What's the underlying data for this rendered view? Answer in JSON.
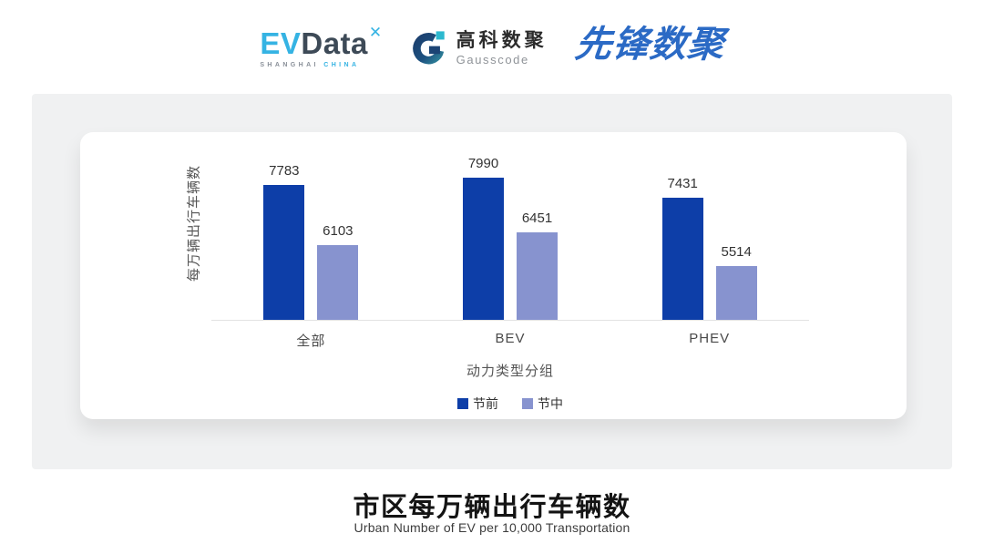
{
  "header": {
    "evdata_logo": {
      "ev": "EV",
      "data": "Data",
      "mark": "✕",
      "sub_left": "SHANGHAI",
      "sub_right": "CHINA"
    },
    "gausscode_logo": {
      "cn": "高科数聚",
      "en": "Gausscode"
    },
    "pioneer_logo": {
      "text": "先锋数聚"
    }
  },
  "chart_data": {
    "type": "bar",
    "categories": [
      "全部",
      "BEV",
      "PHEV"
    ],
    "series": [
      {
        "name": "节前",
        "color": "#0d3ea8",
        "values": [
          7783,
          7990,
          7431
        ]
      },
      {
        "name": "节中",
        "color": "#8793cf",
        "values": [
          6103,
          6451,
          5514
        ]
      }
    ],
    "xlabel": "动力类型分组",
    "ylabel": "每万辆出行车辆数",
    "ylim": [
      4000,
      8600
    ],
    "grid": false,
    "legend_position": "bottom",
    "value_labels": true
  },
  "footer": {
    "title": "市区每万辆出行车辆数",
    "subtitle": "Urban Number of EV per 10,000 Transportation"
  },
  "colors": {
    "panel_bg": "#f0f1f2",
    "card_bg": "#ffffff",
    "series_pre": "#0d3ea8",
    "series_mid": "#8793cf",
    "evdata_blue": "#35b3e3",
    "evdata_dark": "#3d4a57",
    "pioneer_blue": "#2b6ac5",
    "gauss_navy": "#1c3f6e",
    "gauss_teal": "#2cb9cf",
    "axis_line": "#e2e2e2"
  }
}
